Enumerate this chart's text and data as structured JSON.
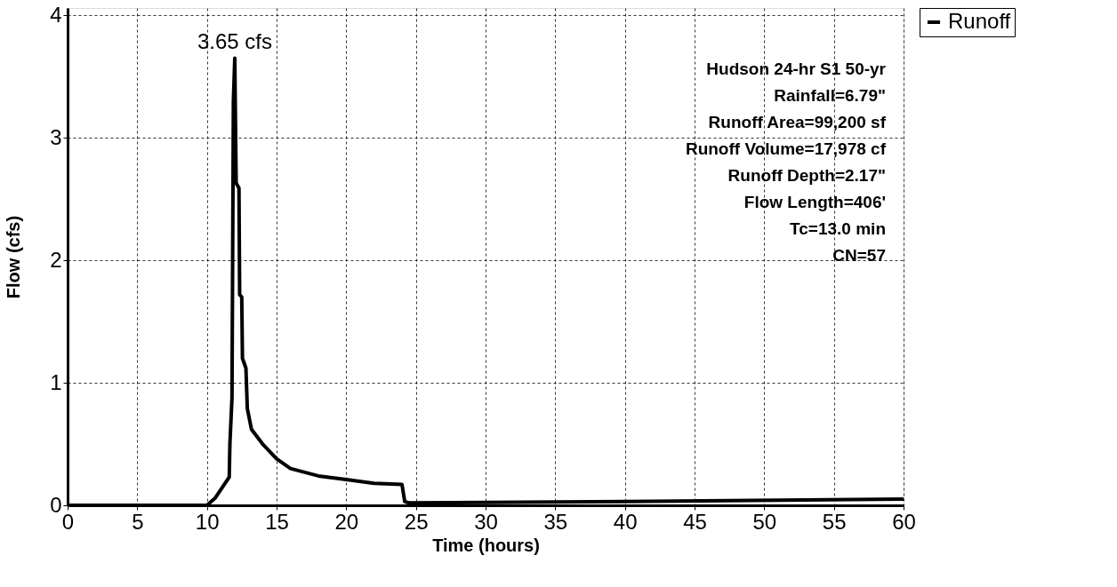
{
  "chart_data": {
    "type": "line",
    "xlabel": "Time (hours)",
    "ylabel": "Flow (cfs)",
    "x": [
      0,
      10,
      10.6,
      11.6,
      11.65,
      11.8,
      11.9,
      12.0,
      12.1,
      12.3,
      12.35,
      12.5,
      12.55,
      12.8,
      12.9,
      13.2,
      14.0,
      15.0,
      16.0,
      18.0,
      20.0,
      22.0,
      24.0,
      24.2,
      24.5,
      40,
      60
    ],
    "series": [
      {
        "name": "Runoff",
        "color": "#000000",
        "values": [
          0,
          0,
          0.06,
          0.23,
          0.5,
          0.88,
          3.3,
          3.65,
          2.63,
          2.59,
          1.72,
          1.7,
          1.2,
          1.12,
          0.79,
          0.62,
          0.5,
          0.38,
          0.3,
          0.24,
          0.21,
          0.18,
          0.17,
          0.03,
          0.02,
          0.03,
          0.05
        ]
      }
    ],
    "xlim": [
      0,
      60
    ],
    "xticks": [
      0,
      5,
      10,
      15,
      20,
      25,
      30,
      35,
      40,
      45,
      50,
      55,
      60
    ],
    "ylim": [
      0,
      4.06
    ],
    "yticks": [
      0,
      1,
      2,
      3,
      4
    ],
    "grid": true,
    "legend": "top right",
    "marker": "none",
    "line_style": "solid",
    "annotations": [
      {
        "text": "3.65 cfs",
        "x": 12,
        "y": 3.65
      },
      "Hudson 24-hr S1 50-yr",
      "Rainfall=6.79\"",
      "Runoff Area=99,200 sf",
      "Runoff Volume=17,978 cf",
      "Runoff Depth=2.17\"",
      "Flow Length=406'",
      "Tc=13.0 min",
      "CN=57"
    ]
  }
}
